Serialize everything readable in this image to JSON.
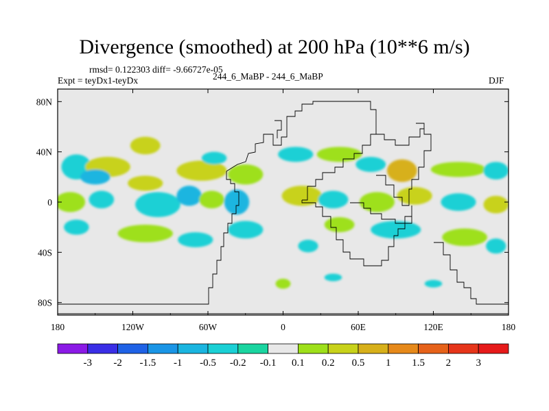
{
  "chart_data": {
    "type": "heatmap",
    "title": "Divergence (smoothed) at 200 hPa (10**6 m/s)",
    "stats_label": "rmsd= 0.122303 diff= -9.66727e-05",
    "experiment_label": "Expt = teyDx1-teyDx",
    "center_label": "244_6_MaBP - 244_6_MaBP",
    "season_label": "DJF",
    "x_range": [
      -180,
      180
    ],
    "y_range": [
      -90,
      90
    ],
    "x_ticks": [
      {
        "value": -180,
        "label": "180"
      },
      {
        "value": -120,
        "label": "120W"
      },
      {
        "value": -60,
        "label": "60W"
      },
      {
        "value": 0,
        "label": "0"
      },
      {
        "value": 60,
        "label": "60E"
      },
      {
        "value": 120,
        "label": "120E"
      },
      {
        "value": 180,
        "label": "180"
      }
    ],
    "y_ticks": [
      {
        "value": 80,
        "label": "80N"
      },
      {
        "value": 40,
        "label": "40N"
      },
      {
        "value": 0,
        "label": "0"
      },
      {
        "value": -40,
        "label": "40S"
      },
      {
        "value": -80,
        "label": "80S"
      }
    ],
    "colorbar": {
      "colors": [
        "#8b1ae6",
        "#3a2ee6",
        "#1f62e6",
        "#1a95e6",
        "#1ab5e0",
        "#1ad0d5",
        "#1ad5a0",
        "#e8e8e8",
        "#9ee01a",
        "#c8d21a",
        "#d7b01a",
        "#e6891a",
        "#e6621a",
        "#e6351a",
        "#e61a1a"
      ],
      "labels": [
        "-3",
        "-2",
        "-1.5",
        "-1",
        "-0.5",
        "-0.2",
        "-0.1",
        "0.1",
        "0.2",
        "0.5",
        "1",
        "1.5",
        "2",
        "3"
      ]
    },
    "anomalies": [
      {
        "lon": -165,
        "lat": 28,
        "rx": 12,
        "ry": 10,
        "value": -0.3
      },
      {
        "lon": -140,
        "lat": 28,
        "rx": 18,
        "ry": 8,
        "value": 0.3
      },
      {
        "lon": -150,
        "lat": 20,
        "rx": 12,
        "ry": 6,
        "value": -0.5
      },
      {
        "lon": -110,
        "lat": 45,
        "rx": 12,
        "ry": 7,
        "value": 0.3
      },
      {
        "lon": -170,
        "lat": 0,
        "rx": 12,
        "ry": 8,
        "value": 0.2
      },
      {
        "lon": -145,
        "lat": 2,
        "rx": 10,
        "ry": 7,
        "value": -0.3
      },
      {
        "lon": -110,
        "lat": 15,
        "rx": 14,
        "ry": 6,
        "value": 0.3
      },
      {
        "lon": -100,
        "lat": -2,
        "rx": 18,
        "ry": 10,
        "value": -0.3
      },
      {
        "lon": -65,
        "lat": 25,
        "rx": 20,
        "ry": 8,
        "value": 0.3
      },
      {
        "lon": -55,
        "lat": 35,
        "rx": 10,
        "ry": 5,
        "value": -0.2
      },
      {
        "lon": -75,
        "lat": 5,
        "rx": 10,
        "ry": 8,
        "value": -0.6
      },
      {
        "lon": -57,
        "lat": 2,
        "rx": 10,
        "ry": 7,
        "value": 0.2
      },
      {
        "lon": -37,
        "lat": 0,
        "rx": 10,
        "ry": 10,
        "value": -0.6
      },
      {
        "lon": -30,
        "lat": 22,
        "rx": 14,
        "ry": 8,
        "value": 0.2
      },
      {
        "lon": -30,
        "lat": -22,
        "rx": 14,
        "ry": 7,
        "value": -0.2
      },
      {
        "lon": -110,
        "lat": -25,
        "rx": 22,
        "ry": 7,
        "value": 0.2
      },
      {
        "lon": -165,
        "lat": -20,
        "rx": 10,
        "ry": 6,
        "value": -0.3
      },
      {
        "lon": -70,
        "lat": -30,
        "rx": 14,
        "ry": 6,
        "value": -0.3
      },
      {
        "lon": 10,
        "lat": 38,
        "rx": 14,
        "ry": 6,
        "value": -0.2
      },
      {
        "lon": 45,
        "lat": 38,
        "rx": 18,
        "ry": 6,
        "value": 0.2
      },
      {
        "lon": 70,
        "lat": 30,
        "rx": 12,
        "ry": 6,
        "value": -0.3
      },
      {
        "lon": 95,
        "lat": 25,
        "rx": 12,
        "ry": 9,
        "value": 0.6
      },
      {
        "lon": 140,
        "lat": 26,
        "rx": 22,
        "ry": 6,
        "value": 0.2
      },
      {
        "lon": 170,
        "lat": 25,
        "rx": 10,
        "ry": 7,
        "value": -0.3
      },
      {
        "lon": 15,
        "lat": 5,
        "rx": 16,
        "ry": 8,
        "value": 0.3
      },
      {
        "lon": 40,
        "lat": 2,
        "rx": 12,
        "ry": 7,
        "value": -0.3
      },
      {
        "lon": 75,
        "lat": 0,
        "rx": 14,
        "ry": 8,
        "value": 0.2
      },
      {
        "lon": 105,
        "lat": 5,
        "rx": 14,
        "ry": 7,
        "value": 0.3
      },
      {
        "lon": 140,
        "lat": 0,
        "rx": 14,
        "ry": 7,
        "value": -0.3
      },
      {
        "lon": 170,
        "lat": -2,
        "rx": 10,
        "ry": 7,
        "value": 0.3
      },
      {
        "lon": 45,
        "lat": -18,
        "rx": 12,
        "ry": 6,
        "value": 0.2
      },
      {
        "lon": 90,
        "lat": -22,
        "rx": 20,
        "ry": 7,
        "value": -0.2
      },
      {
        "lon": 145,
        "lat": -28,
        "rx": 18,
        "ry": 7,
        "value": 0.2
      },
      {
        "lon": 170,
        "lat": -35,
        "rx": 8,
        "ry": 6,
        "value": -0.3
      },
      {
        "lon": 20,
        "lat": -35,
        "rx": 8,
        "ry": 5,
        "value": -0.2
      },
      {
        "lon": 0,
        "lat": -65,
        "rx": 6,
        "ry": 4,
        "value": 0.2
      },
      {
        "lon": 40,
        "lat": -60,
        "rx": 7,
        "ry": 3,
        "value": -0.2
      },
      {
        "lon": 120,
        "lat": -65,
        "rx": 7,
        "ry": 3,
        "value": -0.3
      }
    ]
  }
}
